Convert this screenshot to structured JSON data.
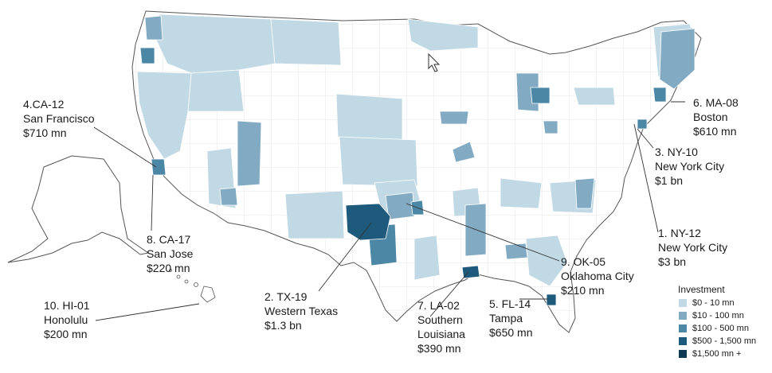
{
  "legend": {
    "title": "Investment",
    "items": [
      {
        "label": "$0 - 10 mn",
        "color": "#c0d9e4"
      },
      {
        "label": "$10 - 100 mn",
        "color": "#82abc3"
      },
      {
        "label": "$100 - 500 mn",
        "color": "#4c87a6"
      },
      {
        "label": "$500 - 1,500 mn",
        "color": "#1e5a7b"
      },
      {
        "label": "$1,500 mn +",
        "color": "#0e3a56"
      }
    ]
  },
  "callouts": [
    {
      "rank": "1. NY-12",
      "place": "New York City",
      "amount": "$3 bn"
    },
    {
      "rank": "2. TX-19",
      "place": "Western Texas",
      "amount": "$1.3 bn"
    },
    {
      "rank": "3. NY-10",
      "place": "New York City",
      "amount": "$1 bn"
    },
    {
      "rank": "4.CA-12",
      "place": "San Francisco",
      "amount": "$710 mn"
    },
    {
      "rank": "5. FL-14",
      "place": "Tampa",
      "amount": "$650 mn"
    },
    {
      "rank": "6. MA-08",
      "place": "Boston",
      "amount": "$610 mn"
    },
    {
      "rank": "7. LA-02",
      "place": "Southern",
      "place2": "Louisiana",
      "amount": "$390 mn"
    },
    {
      "rank": "8. CA-17",
      "place": "San Jose",
      "amount": "$220 mn"
    },
    {
      "rank": "9. OK-05",
      "place": "Oklahoma City",
      "amount": "$210 mn"
    },
    {
      "rank": "10. HI-01",
      "place": "Honolulu",
      "amount": "$200 mn"
    }
  ]
}
